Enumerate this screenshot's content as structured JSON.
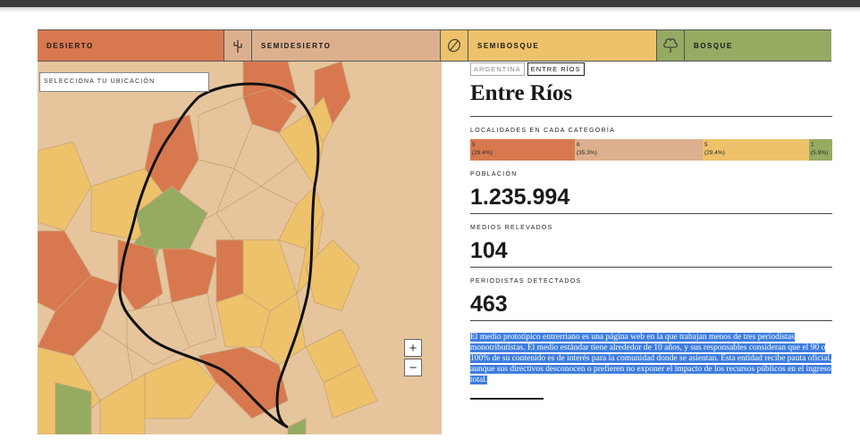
{
  "legend": {
    "categories": [
      {
        "label": "Desierto",
        "color": "#d8784f",
        "icon": "cactus-icon"
      },
      {
        "label": "Semidesierto",
        "color": "#dcb08e",
        "icon": "leaf-icon"
      },
      {
        "label": "Semibosque",
        "color": "#edc26a",
        "icon": "tree-icon"
      },
      {
        "label": "Bosque",
        "color": "#95ab62",
        "icon": null
      }
    ]
  },
  "map": {
    "location_select_placeholder": "Selecciona tu ubicación",
    "zoom_in_label": "+",
    "zoom_out_label": "−"
  },
  "panel": {
    "breadcrumb": [
      "Argentina",
      "Entre Ríos"
    ],
    "title": "Entre Ríos",
    "categories_label": "Localidades en cada categoría",
    "category_counts": [
      {
        "count": "5",
        "pct": "(29.4%)",
        "color": "#d8784f"
      },
      {
        "count": "6",
        "pct": "(35.3%)",
        "color": "#dcb08e"
      },
      {
        "count": "5",
        "pct": "(29.4%)",
        "color": "#edc26a"
      },
      {
        "count": "1",
        "pct": "(5.9%)",
        "color": "#95ab62"
      }
    ],
    "population_label": "Población",
    "population_value": "1.235.994",
    "media_label": "Medios relevados",
    "media_value": "104",
    "journalists_label": "Periodistas detectados",
    "journalists_value": "463",
    "description": "El medio prototípico entrerriano es una página web en la que trabajan menos de tres periodistas monotributistas. El medio estándar tiene alrededor de 10 años, y sus responsables consideran que el 90 o 100% de su contenido es de interés para la comunidad donde se asientan. Esta entidad recibe pauta oficial, aunque sus directivos desconocen o prefieren no exponer el impacto de los recursos públicos en el ingreso total."
  }
}
